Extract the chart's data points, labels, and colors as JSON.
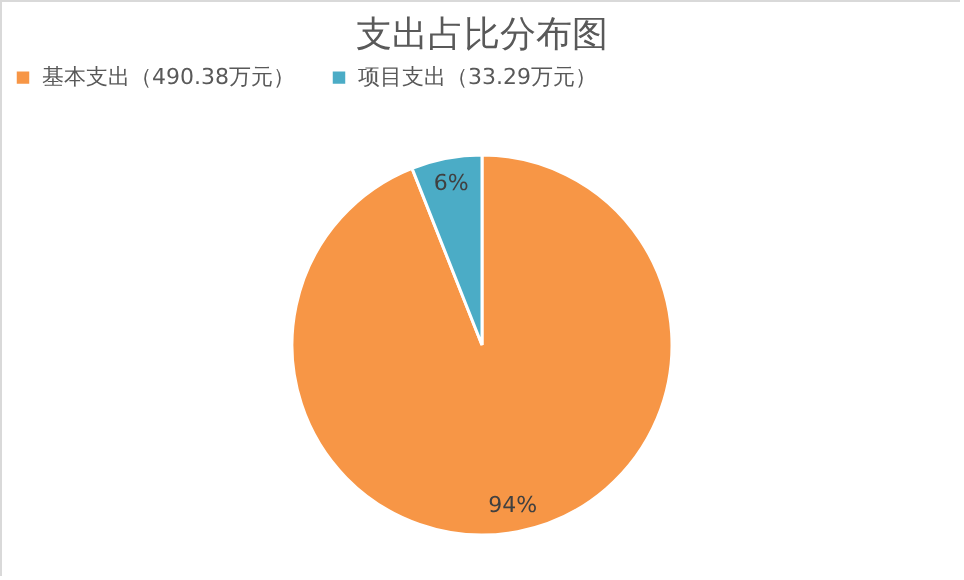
{
  "chart_data": {
    "type": "pie",
    "title": "支出占比分布图",
    "categories": [
      "基本支出（490.38万元）",
      "项目支出（33.29万元）"
    ],
    "values": [
      94,
      6
    ],
    "value_labels": [
      "94%",
      "6%"
    ],
    "colors": [
      "#f79646",
      "#4bacc6"
    ],
    "legend": "top"
  }
}
